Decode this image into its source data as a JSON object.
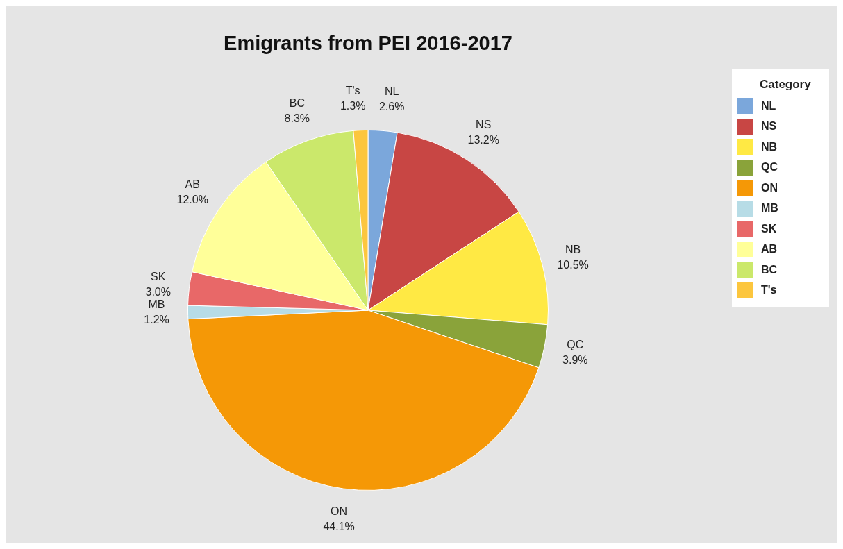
{
  "chart_data": {
    "type": "pie",
    "title": "Emigrants from PEI 2016-2017",
    "legend_title": "Category",
    "legend": "top right",
    "categories": [
      "NL",
      "NS",
      "NB",
      "QC",
      "ON",
      "MB",
      "SK",
      "AB",
      "BC",
      "T's"
    ],
    "values": [
      2.6,
      13.2,
      10.5,
      3.9,
      44.1,
      1.2,
      3.0,
      12.0,
      8.3,
      1.3
    ],
    "value_labels": [
      "2.6%",
      "13.2%",
      "10.5%",
      "3.9%",
      "44.1%",
      "1.2%",
      "3.0%",
      "12.0%",
      "8.3%",
      "1.3%"
    ],
    "colors": [
      "#7ba7db",
      "#c84644",
      "#ffe944",
      "#8aa33a",
      "#f59806",
      "#b7dce6",
      "#e86868",
      "#ffff99",
      "#cbe86b",
      "#fcc63e"
    ]
  }
}
